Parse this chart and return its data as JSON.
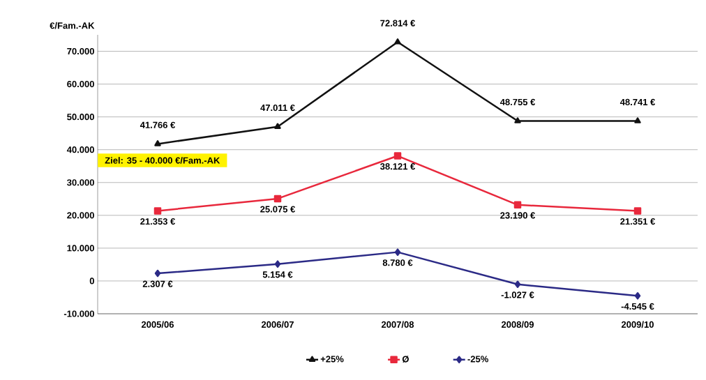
{
  "chart_data": {
    "type": "line",
    "ylabel": "€/Fam.-AK",
    "categories": [
      "2005/06",
      "2006/07",
      "2007/08",
      "2008/09",
      "2009/10"
    ],
    "series": [
      {
        "name": "+25%",
        "color": "#111111",
        "marker": "triangle",
        "values": [
          41766,
          47011,
          72814,
          48755,
          48741
        ],
        "value_labels": [
          "41.766 €",
          "47.011 €",
          "72.814 €",
          "48.755 €",
          "48.741 €"
        ]
      },
      {
        "name": "Ø",
        "color": "#e8283c",
        "marker": "square",
        "values": [
          21353,
          25075,
          38121,
          23190,
          21351
        ],
        "value_labels": [
          "21.353 €",
          "25.075 €",
          "38.121 €",
          "23.190 €",
          "21.351 €"
        ]
      },
      {
        "name": "-25%",
        "color": "#2b2a86",
        "marker": "diamond",
        "values": [
          2307,
          5154,
          8780,
          -1027,
          -4545
        ],
        "value_labels": [
          "2.307 €",
          "5.154 €",
          "8.780 €",
          "-1.027 €",
          "-4.545 €"
        ]
      }
    ],
    "ylim": [
      -10000,
      75000
    ],
    "yticks": [
      {
        "value": -10000,
        "label": "-10.000"
      },
      0,
      {
        "value": 10000,
        "label": "10.000"
      },
      {
        "value": 20000,
        "label": "20.000"
      },
      {
        "value": 30000,
        "label": "30.000"
      },
      {
        "value": 40000,
        "label": "40.000"
      },
      {
        "value": 50000,
        "label": "50.000"
      },
      {
        "value": 60000,
        "label": "60.000"
      },
      {
        "value": 70000,
        "label": "70.000"
      }
    ],
    "annotations": [
      "Ziel:  35 - 40.000 €/Fam.-AK"
    ],
    "grid": "y",
    "legend": "bottom",
    "line_style": "solid"
  }
}
